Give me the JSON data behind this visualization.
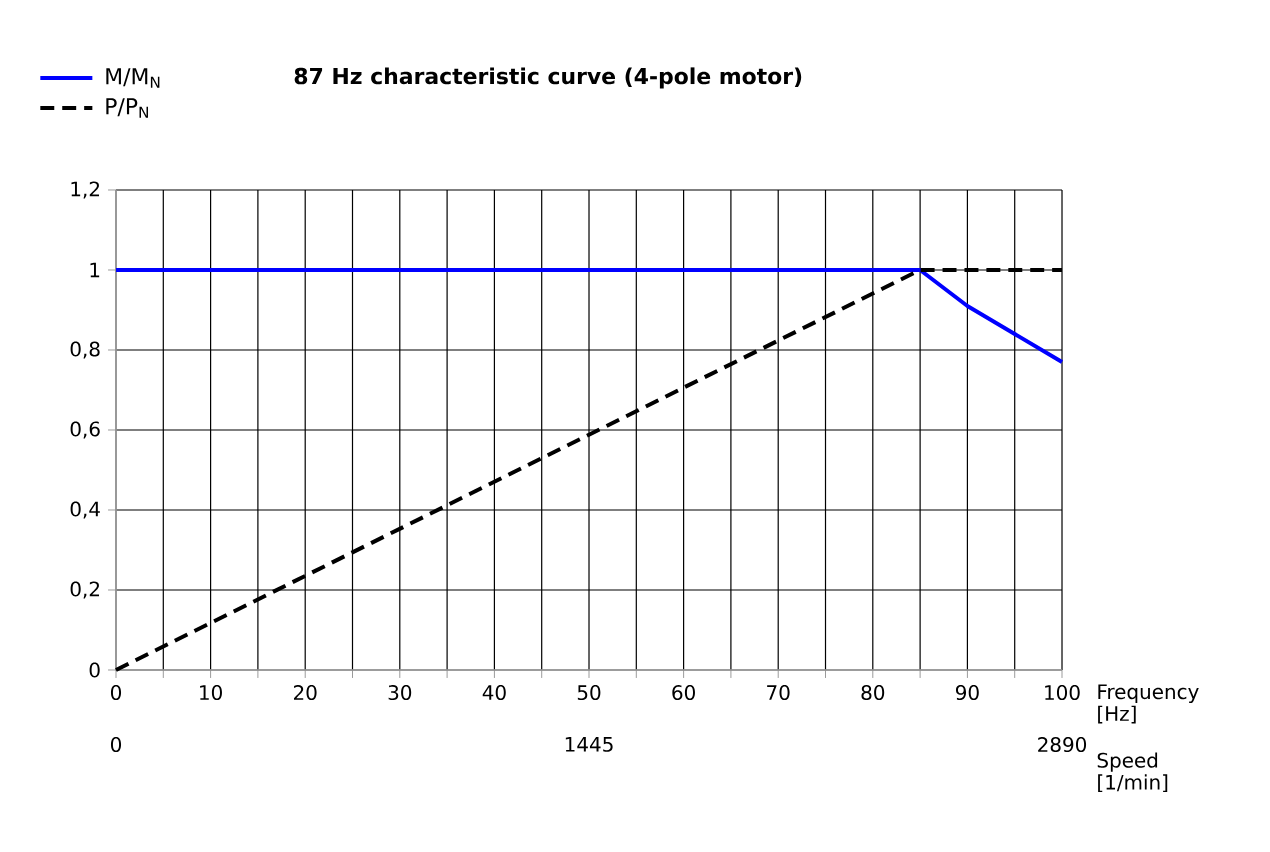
{
  "chart_data": {
    "type": "line",
    "title": "87 Hz characteristic curve (4-pole motor)",
    "xlabel": "Frequency [Hz]",
    "x2label": "Speed [1/min]",
    "series": [
      {
        "name": "M/M$_{N}$",
        "color": "#0000ff",
        "line_style": "solid",
        "x": [
          0,
          85,
          90,
          95,
          100
        ],
        "values": [
          1,
          1,
          0.91,
          0.84,
          0.77
        ]
      },
      {
        "name": "P/P$_{N}$",
        "color": "#000000",
        "line_style": "dashed",
        "x": [
          0,
          85,
          100
        ],
        "values": [
          0,
          1,
          1
        ]
      }
    ],
    "xlim": [
      0,
      100
    ],
    "xticks": [
      0,
      {
        "value": 5,
        "label": null
      },
      10,
      {
        "value": 15,
        "label": null
      },
      20,
      {
        "value": 25,
        "label": null
      },
      30,
      {
        "value": 35,
        "label": null
      },
      40,
      {
        "value": 45,
        "label": null
      },
      50,
      {
        "value": 55,
        "label": null
      },
      60,
      {
        "value": 65,
        "label": null
      },
      70,
      {
        "value": 75,
        "label": null
      },
      80,
      {
        "value": 85,
        "label": null
      },
      90,
      {
        "value": 95,
        "label": null
      },
      100
    ],
    "x2lim": [
      0,
      2890
    ],
    "x2ticks": [
      0,
      1445,
      2890
    ],
    "ylim": [
      0,
      1.2
    ],
    "yticks": [
      0,
      {
        "value": 0.2,
        "label": "0,2"
      },
      {
        "value": 0.4,
        "label": "0,4"
      },
      {
        "value": 0.6,
        "label": "0,6"
      },
      {
        "value": 0.8,
        "label": "0,8"
      },
      1,
      {
        "value": 1.2,
        "label": "1,2"
      }
    ],
    "grid": true,
    "legend": "top left",
    "marker": "none"
  }
}
